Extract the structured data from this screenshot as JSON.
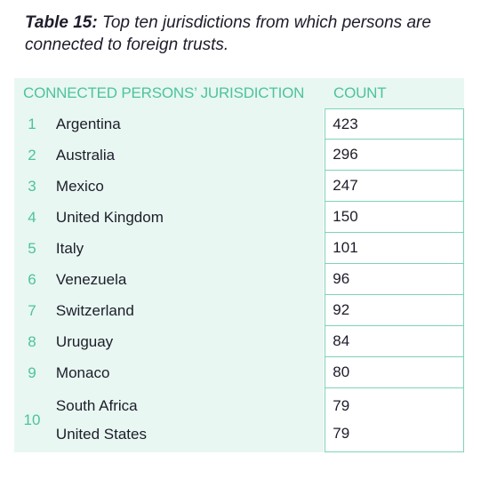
{
  "caption": {
    "label": "Table 15:",
    "text": " Top ten jurisdictions from which persons are connected to foreign trusts."
  },
  "table": {
    "headers": {
      "jurisdiction": "CONNECTED PERSONS’ JURISDICTION",
      "count": "COUNT"
    },
    "rows": [
      {
        "rank": "1",
        "name": "Argentina",
        "count": "423"
      },
      {
        "rank": "2",
        "name": "Australia",
        "count": "296"
      },
      {
        "rank": "3",
        "name": "Mexico",
        "count": "247"
      },
      {
        "rank": "4",
        "name": "United Kingdom",
        "count": "150"
      },
      {
        "rank": "5",
        "name": "Italy",
        "count": "101"
      },
      {
        "rank": "6",
        "name": "Venezuela",
        "count": "96"
      },
      {
        "rank": "7",
        "name": "Switzerland",
        "count": "92"
      },
      {
        "rank": "8",
        "name": "Uruguay",
        "count": "84"
      },
      {
        "rank": "9",
        "name": "Monaco",
        "count": "80"
      }
    ],
    "tied": {
      "rank": "10",
      "entries": [
        {
          "name": "South Africa",
          "count": "79"
        },
        {
          "name": "United States",
          "count": "79"
        }
      ]
    }
  }
}
